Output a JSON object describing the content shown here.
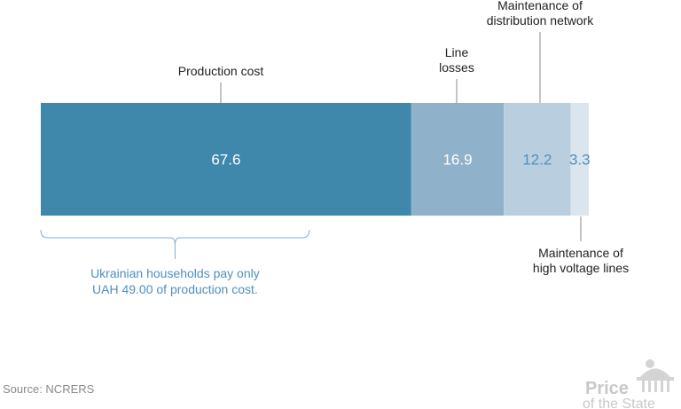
{
  "chart_data": {
    "type": "bar",
    "orientation": "horizontal-stacked",
    "segments": [
      {
        "name": "Production cost",
        "value": 67.6,
        "color": "#3f87ab",
        "value_color": "#ffffff"
      },
      {
        "name": "Line losses",
        "value": 16.9,
        "color": "#8fb1c9",
        "value_color": "#ffffff"
      },
      {
        "name": "Maintenance of distribution network",
        "value": 12.2,
        "color": "#b9cfe0",
        "value_color": "#4f8fbd"
      },
      {
        "name": "Maintenance of high voltage lines",
        "value": 3.3,
        "color": "#dae5ee",
        "value_color": "#4f8fbd"
      }
    ],
    "total": 100,
    "labels": {
      "production": [
        "Production cost"
      ],
      "line_losses": [
        "Line",
        "losses"
      ],
      "distribution": [
        "Maintenance of",
        "distribution network"
      ],
      "high_voltage": [
        "Maintenance of",
        "high voltage lines"
      ]
    },
    "annotation": {
      "lines": [
        "Ukrainian households pay only",
        "UAH 49.00 of production cost."
      ],
      "value": 49.0,
      "color": "#4f8fbd"
    }
  },
  "footer": {
    "source": "Source: NCRERS",
    "logo_line1": "Price",
    "logo_line2": "of the State"
  }
}
